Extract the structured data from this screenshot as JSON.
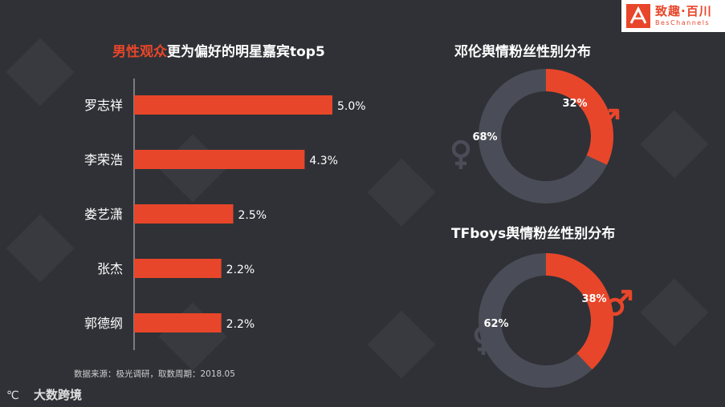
{
  "logo": {
    "cn": "致趣·百川",
    "en": "BesChannels"
  },
  "bar_section": {
    "title_highlight": "男性观众",
    "title_rest": "更为偏好的明星嘉宾top5"
  },
  "donut1": {
    "title": "邓伦舆情粉丝性别分布"
  },
  "donut2": {
    "title": "TFboys舆情粉丝性别分布"
  },
  "source": "数据来源：极光调研，取数周期：2018.05",
  "footer": {
    "logo_text": "大数跨境"
  },
  "colors": {
    "accent": "#e8462a",
    "ring_track": "#4a4d57",
    "background": "#2f3136"
  },
  "chart_data": [
    {
      "type": "bar",
      "orientation": "horizontal",
      "categories": [
        "罗志祥",
        "李荣浩",
        "娄艺潇",
        "张杰",
        "郭德纲"
      ],
      "values": [
        5.0,
        4.3,
        2.5,
        2.2,
        2.2
      ],
      "value_labels": [
        "5.0%",
        "4.3%",
        "2.5%",
        "2.2%",
        "2.2%"
      ],
      "title": "男性观众更为偏好的明星嘉宾top5",
      "color": "#e8462a"
    },
    {
      "type": "pie",
      "style": "donut",
      "title": "邓伦舆情粉丝性别分布",
      "slices": [
        {
          "label": "32%",
          "value": 32,
          "gender": "male",
          "color": "#e8462a"
        },
        {
          "label": "68%",
          "value": 68,
          "gender": "female",
          "color": "#4a4d57"
        }
      ]
    },
    {
      "type": "pie",
      "style": "donut",
      "title": "TFboys舆情粉丝性别分布",
      "slices": [
        {
          "label": "38%",
          "value": 38,
          "gender": "male",
          "color": "#e8462a"
        },
        {
          "label": "62%",
          "value": 62,
          "gender": "female",
          "color": "#4a4d57"
        }
      ]
    }
  ]
}
